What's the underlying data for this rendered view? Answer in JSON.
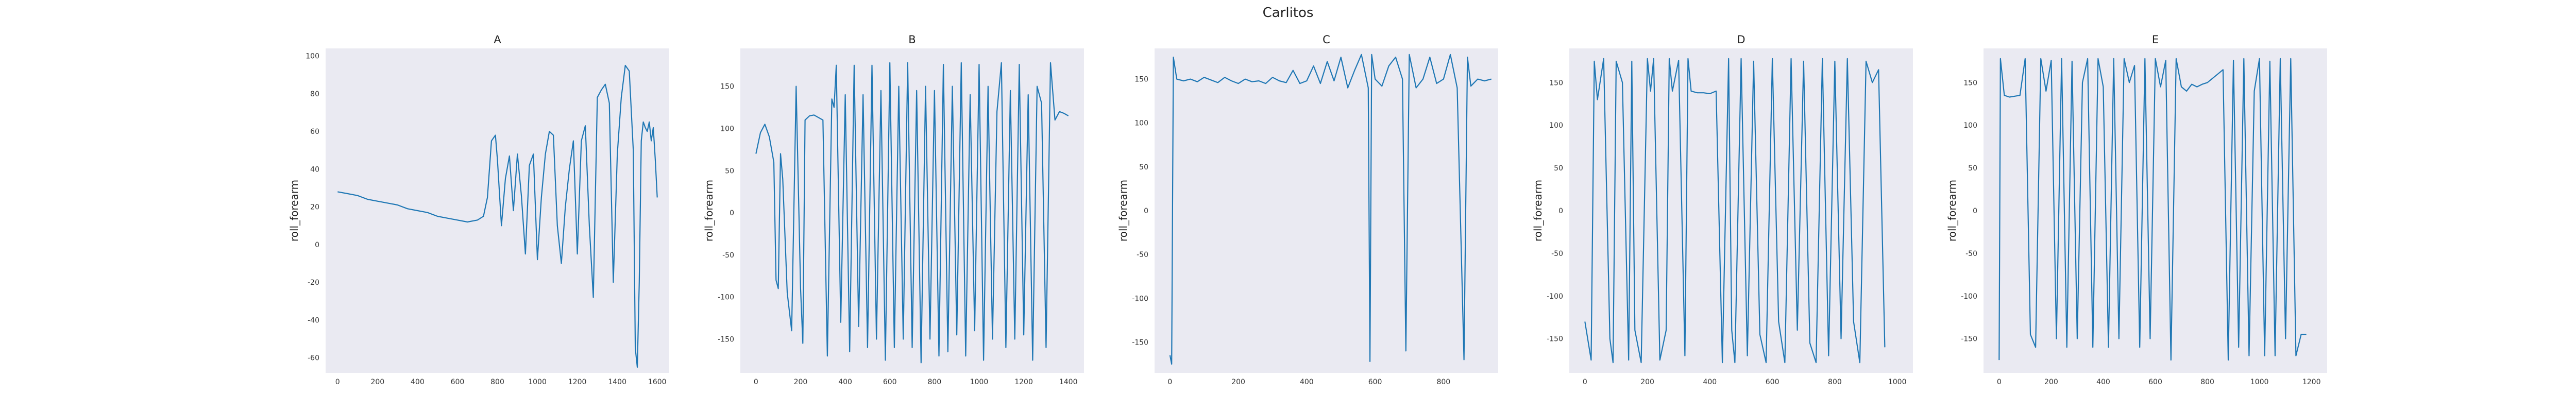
{
  "figure": {
    "suptitle": "Carlitos"
  },
  "chart_data": [
    {
      "type": "line",
      "title": "A",
      "xlabel": "",
      "ylabel": "roll_forearm",
      "xlim": [
        -60,
        1660
      ],
      "ylim": [
        -68,
        104
      ],
      "xticks": [
        0,
        200,
        400,
        600,
        800,
        1000,
        1200,
        1400,
        1600
      ],
      "yticks": [
        -60,
        -40,
        -20,
        0,
        20,
        40,
        60,
        80,
        100
      ],
      "grid": false,
      "color": "#1f77b4",
      "x": [
        0,
        50,
        100,
        150,
        200,
        250,
        300,
        350,
        400,
        450,
        500,
        550,
        600,
        650,
        700,
        730,
        750,
        770,
        790,
        800,
        820,
        840,
        860,
        880,
        900,
        920,
        940,
        960,
        980,
        1000,
        1020,
        1040,
        1060,
        1080,
        1100,
        1120,
        1140,
        1160,
        1180,
        1200,
        1220,
        1240,
        1260,
        1280,
        1300,
        1320,
        1340,
        1360,
        1380,
        1400,
        1420,
        1440,
        1460,
        1480,
        1490,
        1500,
        1510,
        1520,
        1530,
        1540,
        1550,
        1560,
        1570,
        1580,
        1590,
        1600
      ],
      "y": [
        28,
        27,
        26,
        24,
        23,
        22,
        21,
        19,
        18,
        17,
        15,
        14,
        13,
        12,
        13,
        15,
        25,
        55,
        58,
        45,
        10,
        35,
        47,
        18,
        48,
        26,
        -5,
        42,
        48,
        -8,
        25,
        48,
        60,
        58,
        10,
        -10,
        20,
        40,
        55,
        -5,
        55,
        63,
        10,
        -28,
        78,
        82,
        85,
        75,
        -20,
        48,
        78,
        95,
        92,
        50,
        -55,
        -65,
        -20,
        55,
        65,
        62,
        60,
        65,
        55,
        62,
        45,
        25
      ]
    },
    {
      "type": "line",
      "title": "B",
      "xlabel": "",
      "ylabel": "roll_forearm",
      "xlim": [
        -70,
        1470
      ],
      "ylim": [
        -190,
        195
      ],
      "xticks": [
        0,
        200,
        400,
        600,
        800,
        1000,
        1200,
        1400
      ],
      "yticks": [
        -150,
        -100,
        -50,
        0,
        50,
        100,
        150
      ],
      "grid": false,
      "color": "#1f77b4",
      "x": [
        0,
        20,
        40,
        60,
        80,
        90,
        100,
        110,
        120,
        140,
        160,
        180,
        200,
        210,
        220,
        240,
        260,
        280,
        300,
        320,
        340,
        350,
        360,
        380,
        400,
        420,
        440,
        460,
        480,
        500,
        520,
        540,
        560,
        580,
        600,
        620,
        640,
        660,
        680,
        700,
        720,
        740,
        760,
        780,
        800,
        820,
        840,
        860,
        880,
        900,
        920,
        940,
        960,
        980,
        1000,
        1020,
        1040,
        1060,
        1080,
        1100,
        1120,
        1140,
        1160,
        1180,
        1200,
        1220,
        1240,
        1260,
        1280,
        1300,
        1320,
        1340,
        1360,
        1380,
        1400
      ],
      "y": [
        70,
        95,
        105,
        90,
        60,
        -80,
        -90,
        70,
        40,
        -95,
        -140,
        150,
        -90,
        -155,
        110,
        115,
        116,
        113,
        110,
        -170,
        135,
        125,
        175,
        -130,
        140,
        -165,
        175,
        -135,
        140,
        -160,
        175,
        -150,
        145,
        -175,
        178,
        -160,
        150,
        -150,
        178,
        -160,
        145,
        -178,
        150,
        -150,
        145,
        -170,
        176,
        -165,
        150,
        -145,
        178,
        -170,
        140,
        -140,
        176,
        -175,
        150,
        -150,
        120,
        178,
        -160,
        145,
        -150,
        176,
        -145,
        140,
        -175,
        150,
        130,
        -160,
        178,
        110,
        120,
        118,
        115
      ]
    },
    {
      "type": "line",
      "title": "C",
      "xlabel": "",
      "ylabel": "roll_forearm",
      "xlim": [
        -45,
        960
      ],
      "ylim": [
        -185,
        185
      ],
      "xticks": [
        0,
        200,
        400,
        600,
        800
      ],
      "yticks": [
        -150,
        -100,
        -50,
        0,
        50,
        100,
        150
      ],
      "grid": false,
      "color": "#1f77b4",
      "x": [
        0,
        5,
        10,
        20,
        40,
        60,
        80,
        100,
        120,
        140,
        160,
        180,
        200,
        220,
        240,
        260,
        280,
        300,
        320,
        340,
        360,
        380,
        400,
        420,
        440,
        460,
        480,
        500,
        520,
        540,
        560,
        580,
        585,
        590,
        600,
        620,
        640,
        660,
        680,
        690,
        700,
        720,
        740,
        760,
        780,
        800,
        820,
        840,
        860,
        870,
        880,
        900,
        920,
        940
      ],
      "y": [
        -165,
        -175,
        175,
        150,
        148,
        150,
        147,
        152,
        149,
        146,
        152,
        148,
        145,
        150,
        147,
        148,
        145,
        152,
        148,
        146,
        160,
        145,
        148,
        165,
        145,
        170,
        148,
        175,
        140,
        160,
        178,
        140,
        -172,
        178,
        150,
        142,
        165,
        175,
        150,
        -160,
        178,
        140,
        150,
        175,
        145,
        150,
        178,
        140,
        -170,
        175,
        142,
        150,
        148,
        150
      ]
    },
    {
      "type": "line",
      "title": "D",
      "xlabel": "",
      "ylabel": "roll_forearm",
      "xlim": [
        -50,
        1050
      ],
      "ylim": [
        -190,
        190
      ],
      "xticks": [
        0,
        200,
        400,
        600,
        800,
        1000
      ],
      "yticks": [
        -150,
        -100,
        -50,
        0,
        50,
        100,
        150
      ],
      "grid": false,
      "color": "#1f77b4",
      "x": [
        0,
        20,
        30,
        40,
        60,
        80,
        90,
        100,
        120,
        140,
        150,
        160,
        180,
        200,
        210,
        220,
        240,
        260,
        270,
        280,
        300,
        320,
        330,
        340,
        360,
        380,
        400,
        420,
        440,
        460,
        470,
        480,
        500,
        520,
        540,
        560,
        580,
        600,
        620,
        640,
        660,
        680,
        700,
        720,
        740,
        760,
        780,
        800,
        820,
        840,
        860,
        880,
        900,
        920,
        940,
        960
      ],
      "y": [
        -130,
        -175,
        175,
        130,
        178,
        -150,
        -178,
        175,
        150,
        -175,
        175,
        -140,
        -178,
        178,
        140,
        178,
        -175,
        -140,
        178,
        140,
        176,
        -170,
        178,
        140,
        138,
        138,
        137,
        140,
        -178,
        178,
        -140,
        -178,
        178,
        -170,
        175,
        -145,
        -178,
        178,
        -130,
        -178,
        178,
        -140,
        175,
        -155,
        -178,
        178,
        -170,
        175,
        -150,
        178,
        -130,
        -178,
        175,
        150,
        165,
        -160
      ]
    },
    {
      "type": "line",
      "title": "E",
      "xlabel": "",
      "ylabel": "roll_forearm",
      "xlim": [
        -60,
        1260
      ],
      "ylim": [
        -190,
        190
      ],
      "xticks": [
        0,
        200,
        400,
        600,
        800,
        1000,
        1200
      ],
      "yticks": [
        -150,
        -100,
        -50,
        0,
        50,
        100,
        150
      ],
      "grid": false,
      "color": "#1f77b4",
      "x": [
        0,
        5,
        20,
        40,
        60,
        80,
        100,
        120,
        140,
        160,
        180,
        200,
        220,
        240,
        260,
        280,
        300,
        320,
        340,
        360,
        380,
        400,
        420,
        440,
        460,
        480,
        500,
        520,
        540,
        560,
        580,
        600,
        620,
        640,
        660,
        680,
        700,
        720,
        740,
        760,
        780,
        800,
        820,
        840,
        860,
        880,
        900,
        920,
        940,
        960,
        980,
        1000,
        1020,
        1040,
        1060,
        1080,
        1100,
        1120,
        1140,
        1160,
        1180
      ],
      "y": [
        -175,
        178,
        135,
        133,
        134,
        135,
        178,
        -145,
        -160,
        178,
        140,
        176,
        -150,
        178,
        -160,
        175,
        -150,
        150,
        178,
        -160,
        178,
        145,
        -160,
        178,
        -150,
        178,
        150,
        170,
        -160,
        178,
        -150,
        178,
        145,
        176,
        -175,
        178,
        145,
        140,
        148,
        145,
        148,
        150,
        155,
        160,
        165,
        -175,
        176,
        -160,
        178,
        -170,
        140,
        178,
        -170,
        175,
        -170,
        178,
        -150,
        178,
        -170,
        -145,
        -145
      ]
    }
  ]
}
